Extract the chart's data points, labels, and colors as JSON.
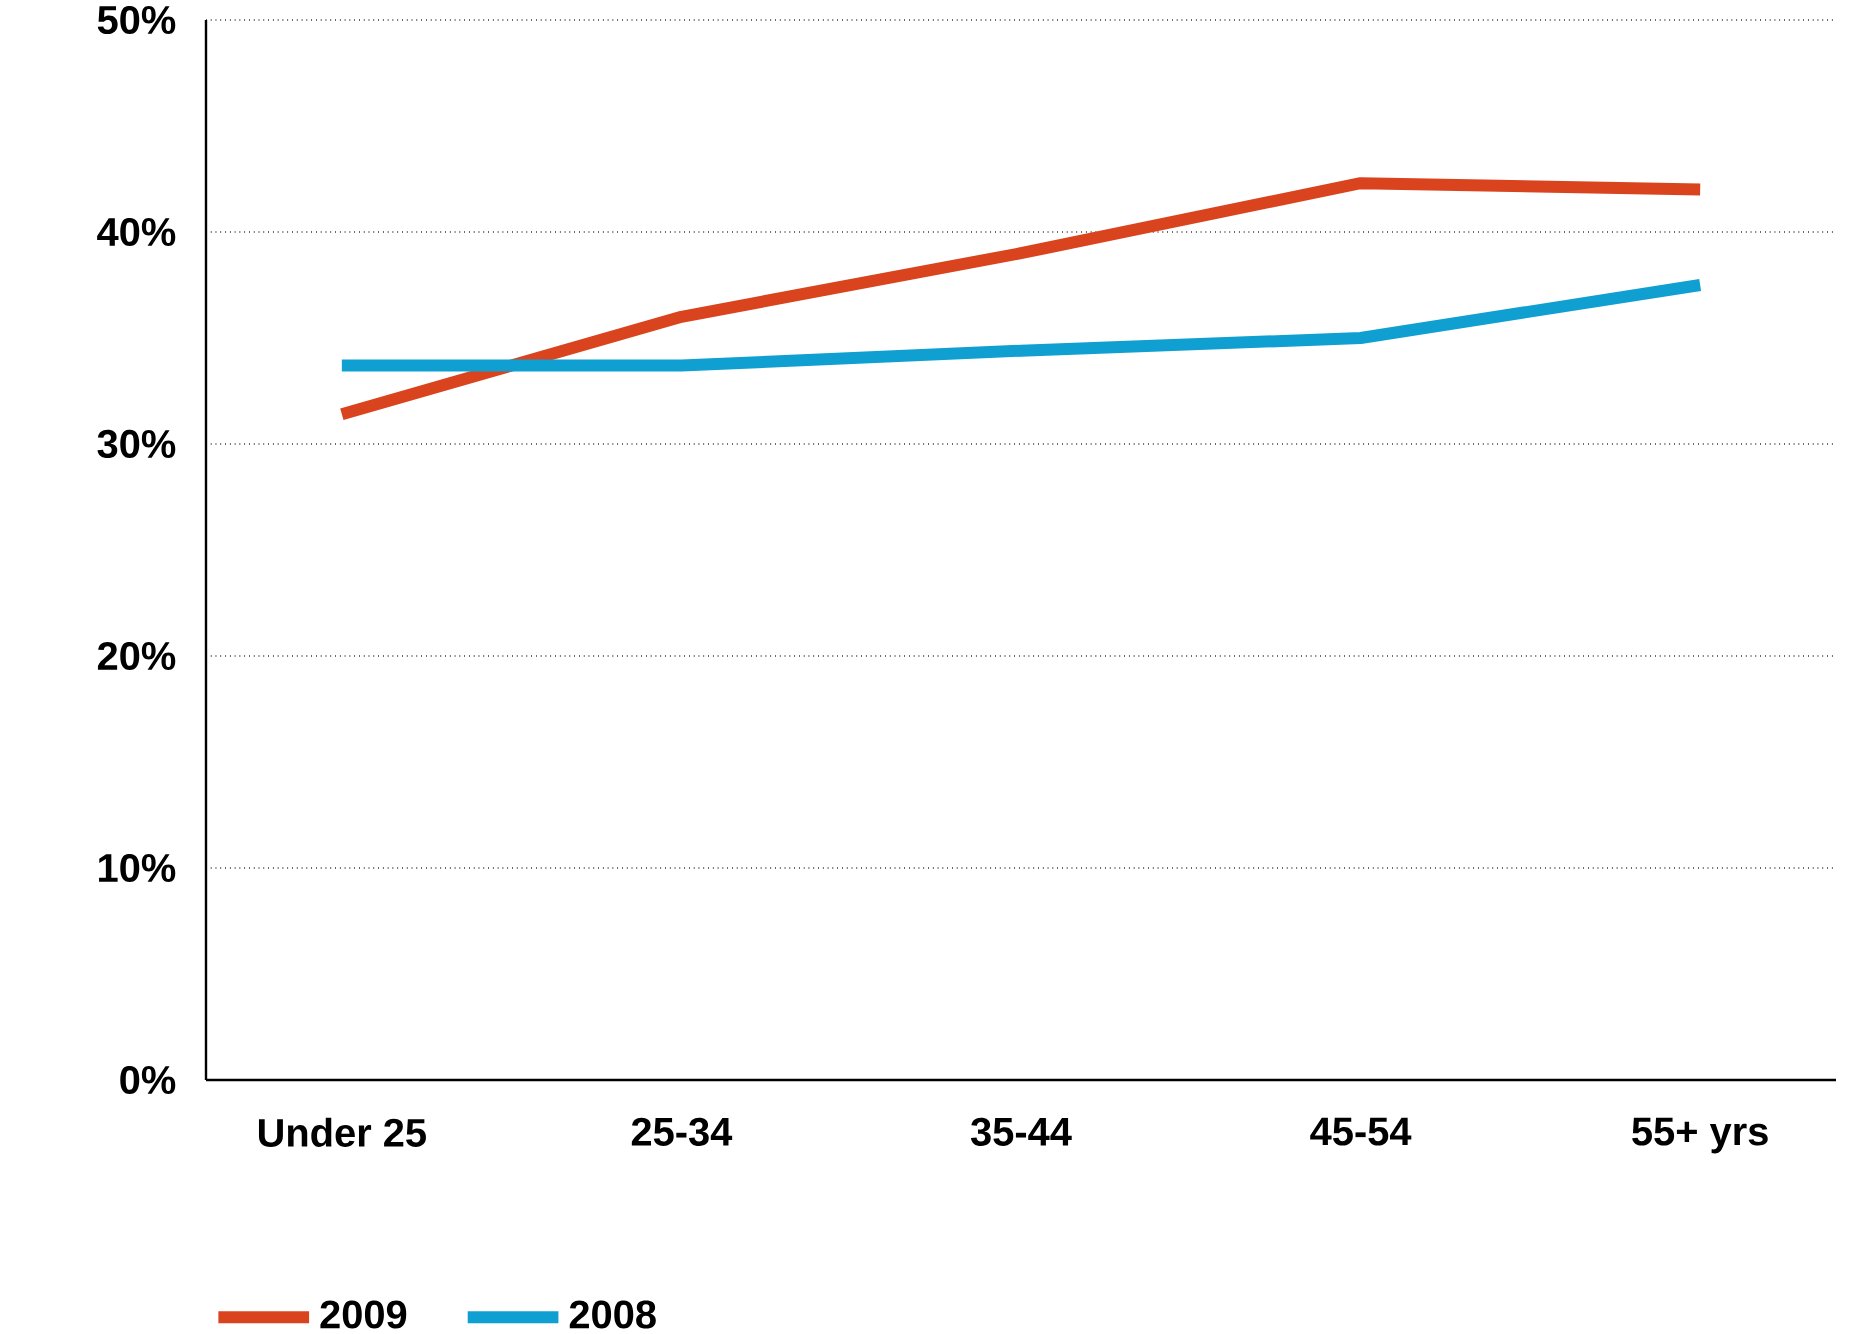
{
  "chart_data": {
    "type": "line",
    "categories": [
      "Under 25",
      "25-34",
      "35-44",
      "45-54",
      "55+ yrs"
    ],
    "series": [
      {
        "name": "2009",
        "color": "#d9441f",
        "values": [
          31.4,
          36.0,
          39.0,
          42.3,
          42.0
        ]
      },
      {
        "name": "2008",
        "color": "#0fa0d1",
        "values": [
          33.7,
          33.7,
          34.4,
          35.0,
          37.5
        ]
      }
    ],
    "ylim": [
      0,
      50
    ],
    "yticks": [
      {
        "value": 0,
        "label": "0%"
      },
      {
        "value": 10,
        "label": "10%"
      },
      {
        "value": 20,
        "label": "20%"
      },
      {
        "value": 30,
        "label": "30%"
      },
      {
        "value": 40,
        "label": "40%"
      },
      {
        "value": 50,
        "label": "50%"
      }
    ],
    "grid": "y",
    "legend": "bottom",
    "marker": "none",
    "line_style": "solid"
  }
}
